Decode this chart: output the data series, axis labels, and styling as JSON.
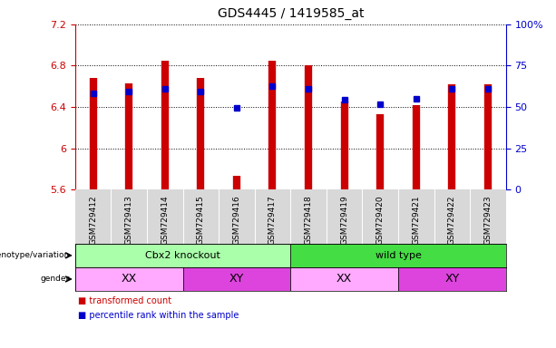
{
  "title": "GDS4445 / 1419585_at",
  "samples": [
    "GSM729412",
    "GSM729413",
    "GSM729414",
    "GSM729415",
    "GSM729416",
    "GSM729417",
    "GSM729418",
    "GSM729419",
    "GSM729420",
    "GSM729421",
    "GSM729422",
    "GSM729423"
  ],
  "bar_bottom": 5.6,
  "bar_tops": [
    6.68,
    6.63,
    6.85,
    6.68,
    5.73,
    6.85,
    6.8,
    6.45,
    6.33,
    6.42,
    6.62,
    6.62
  ],
  "blue_dots": [
    6.53,
    6.55,
    6.58,
    6.55,
    6.39,
    6.6,
    6.58,
    6.47,
    6.43,
    6.48,
    6.58,
    6.58
  ],
  "ylim_left": [
    5.6,
    7.2
  ],
  "ylim_right": [
    0,
    100
  ],
  "yticks_left": [
    5.6,
    6.0,
    6.4,
    6.8,
    7.2
  ],
  "yticks_right": [
    0,
    25,
    50,
    75,
    100
  ],
  "ytick_labels_right": [
    "0",
    "25",
    "50",
    "75",
    "100%"
  ],
  "ytick_labels_left": [
    "5.6",
    "6",
    "6.4",
    "6.8",
    "7.2"
  ],
  "bar_color": "#cc0000",
  "dot_color": "#0000cc",
  "left_tick_color": "#cc0000",
  "right_tick_color": "#0000cc",
  "genotype_groups": [
    {
      "label": "Cbx2 knockout",
      "start": 0,
      "end": 5,
      "color": "#aaffaa"
    },
    {
      "label": "wild type",
      "start": 6,
      "end": 11,
      "color": "#44dd44"
    }
  ],
  "gender_groups": [
    {
      "label": "XX",
      "start": 0,
      "end": 2,
      "color": "#ffaaff"
    },
    {
      "label": "XY",
      "start": 3,
      "end": 5,
      "color": "#dd44dd"
    },
    {
      "label": "XX",
      "start": 6,
      "end": 8,
      "color": "#ffaaff"
    },
    {
      "label": "XY",
      "start": 9,
      "end": 11,
      "color": "#dd44dd"
    }
  ],
  "legend_items": [
    {
      "label": "transformed count",
      "color": "#cc0000"
    },
    {
      "label": "percentile rank within the sample",
      "color": "#0000cc"
    }
  ],
  "xlim": [
    -0.5,
    11.5
  ],
  "bar_linewidth": 6
}
